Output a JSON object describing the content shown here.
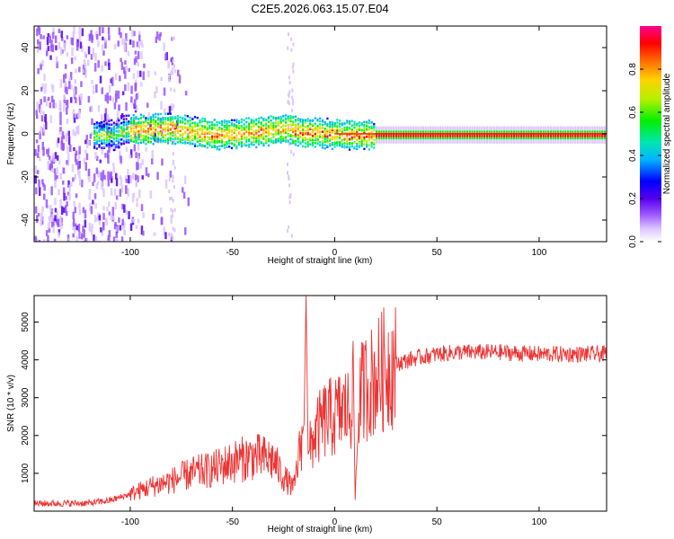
{
  "title": "C2E5.2026.063.15.07.E04",
  "chart_data": [
    {
      "type": "heatmap",
      "xlabel": "Height of straight line (km)",
      "ylabel": "Frequency (Hz)",
      "xlim": [
        -147,
        133
      ],
      "ylim": [
        -50,
        50
      ],
      "xticks": [
        -100,
        -50,
        0,
        50,
        100
      ],
      "yticks": [
        -40,
        -20,
        0,
        20,
        40
      ],
      "colorbar": {
        "label": "Normalized spectral amplitude",
        "range": [
          0,
          1
        ],
        "ticks": [
          0.0,
          0.2,
          0.4,
          0.6,
          0.8
        ],
        "colormap": [
          "#ffffff",
          "#dcc6ff",
          "#9a52ff",
          "#5500ee",
          "#0000ff",
          "#00b4ff",
          "#00e6b4",
          "#00f000",
          "#b4f000",
          "#ffd200",
          "#ff6a00",
          "#ff0000",
          "#ff0090"
        ]
      },
      "features": {
        "noise_region_x": [
          -147,
          -85
        ],
        "carrier_frequency_hz": 0,
        "tone_strong_from_x": 0,
        "notes_ridge_points": [
          [
            -105,
            2
          ],
          [
            -80,
            3
          ],
          [
            -60,
            0
          ],
          [
            -40,
            1
          ],
          [
            -25,
            3
          ],
          [
            -15,
            1
          ],
          [
            -10,
            1
          ],
          [
            5,
            0
          ],
          [
            20,
            0
          ],
          [
            133,
            0
          ]
        ]
      }
    },
    {
      "type": "line",
      "xlabel": "Height of straight line (km)",
      "ylabel": "SNR (10 * v/v)",
      "xlim": [
        -147,
        133
      ],
      "ylim": [
        0,
        5700
      ],
      "xticks": [
        -100,
        -50,
        0,
        50,
        100
      ],
      "yticks": [
        1000,
        2000,
        3000,
        4000,
        5000
      ],
      "series": [
        {
          "name": "SNR",
          "color": "#ee3333",
          "x": [
            -147,
            -120,
            -110,
            -100,
            -90,
            -80,
            -70,
            -60,
            -50,
            -40,
            -30,
            -25,
            -20,
            -15,
            -14,
            -13,
            -10,
            -5,
            0,
            5,
            8,
            9,
            10,
            12,
            15,
            20,
            25,
            30,
            40,
            50,
            60,
            80,
            100,
            133
          ],
          "y": [
            200,
            210,
            280,
            450,
            650,
            800,
            1000,
            1100,
            1300,
            1450,
            1350,
            900,
            600,
            2300,
            5700,
            1500,
            2000,
            2400,
            2500,
            2700,
            2600,
            4500,
            300,
            3000,
            3300,
            3500,
            3800,
            3900,
            4050,
            4150,
            4200,
            4200,
            4150,
            4150
          ]
        }
      ]
    }
  ]
}
